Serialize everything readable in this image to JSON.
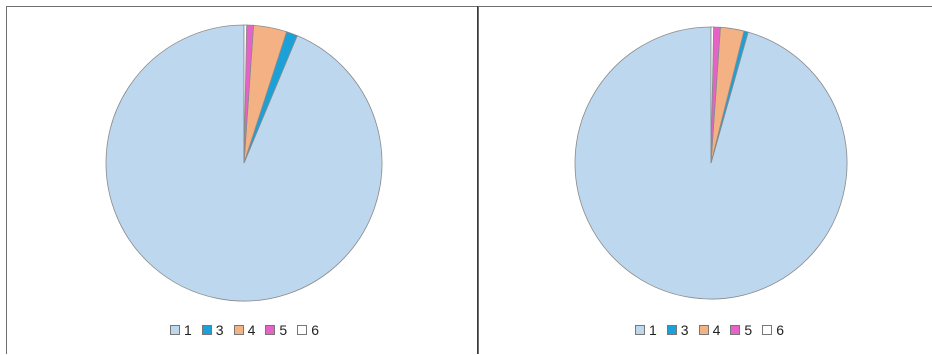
{
  "chart_data": [
    {
      "type": "pie",
      "labels": [
        "1",
        "3",
        "4",
        "5",
        "6"
      ],
      "values": [
        93.7,
        1.3,
        3.9,
        0.8,
        0.3
      ],
      "colors": [
        "#bdd7ee",
        "#1aa2d8",
        "#f4b183",
        "#e563c8",
        "#ffffff"
      ],
      "legend": "bottom"
    },
    {
      "type": "pie",
      "labels": [
        "1",
        "3",
        "4",
        "5",
        "6"
      ],
      "values": [
        95.6,
        0.5,
        2.8,
        0.8,
        0.3
      ],
      "colors": [
        "#bdd7ee",
        "#1aa2d8",
        "#f4b183",
        "#e563c8",
        "#ffffff"
      ],
      "legend": "bottom"
    }
  ]
}
